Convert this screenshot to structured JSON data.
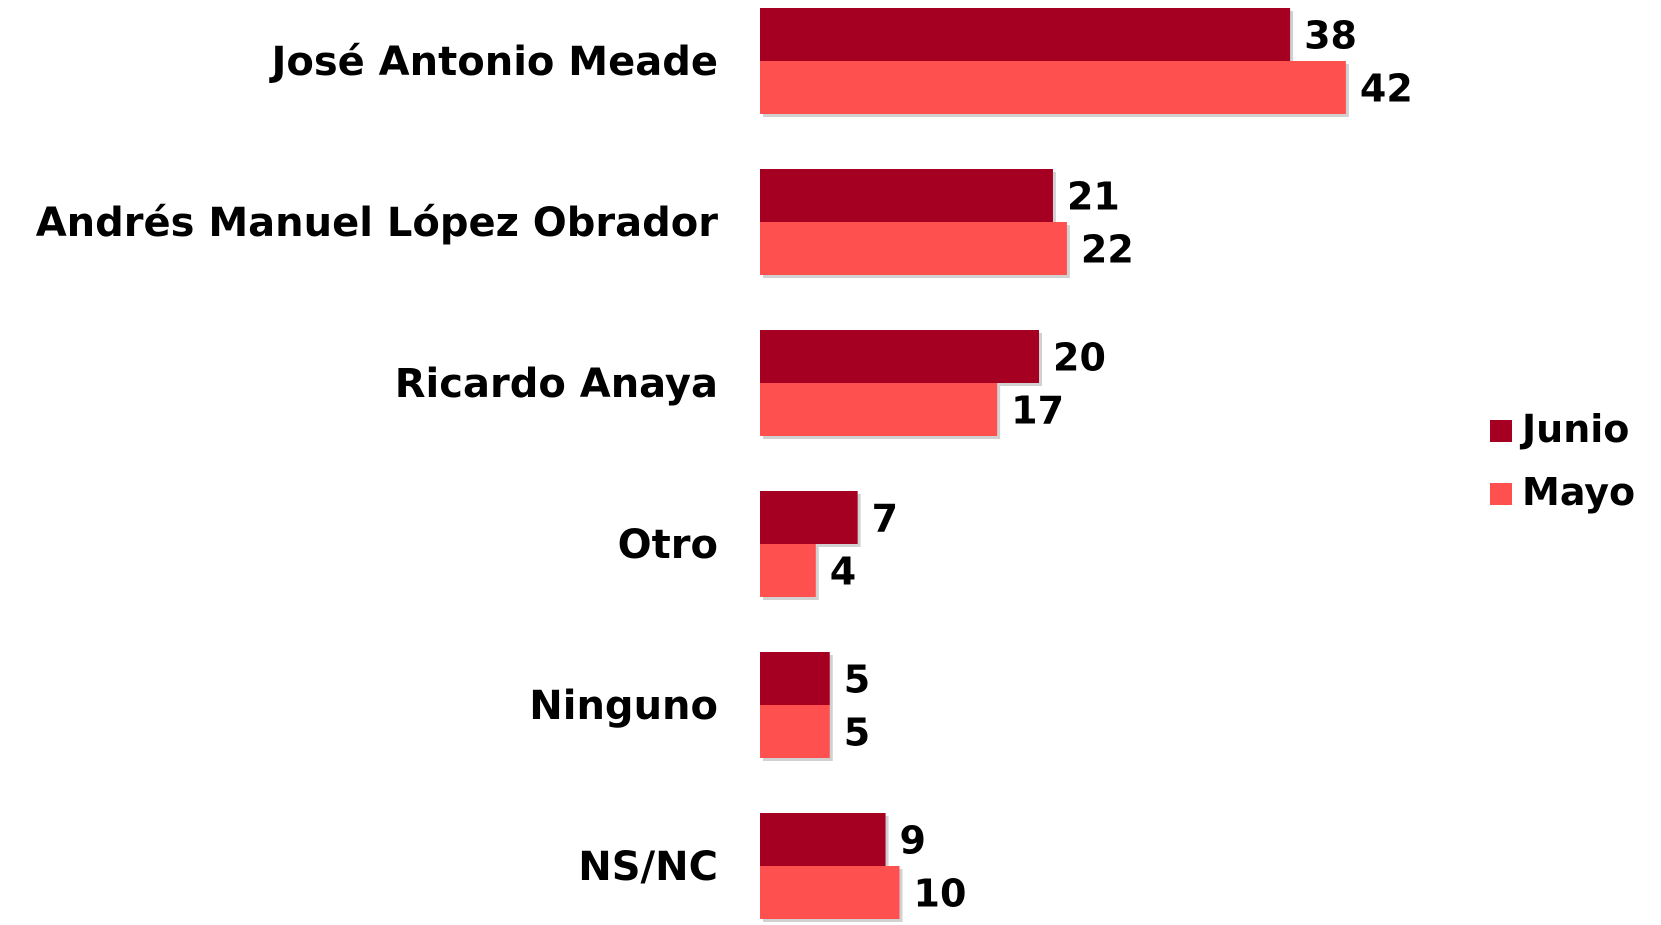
{
  "chart_data": {
    "type": "bar",
    "orientation": "horizontal",
    "title": "",
    "xlabel": "",
    "ylabel": "",
    "categories": [
      "José Antonio Meade",
      "Andrés Manuel López Obrador",
      "Ricardo Anaya",
      "Otro",
      "Ninguno",
      "NS/NC"
    ],
    "series": [
      {
        "name": "Junio",
        "color": "#a50021",
        "values": [
          38,
          21,
          20,
          7,
          5,
          9
        ]
      },
      {
        "name": "Mayo",
        "color": "#ff5050",
        "values": [
          42,
          22,
          17,
          4,
          5,
          10
        ]
      }
    ],
    "xlim": [
      0,
      42
    ],
    "grid": false,
    "data_labels": true,
    "legend_position": "right"
  }
}
